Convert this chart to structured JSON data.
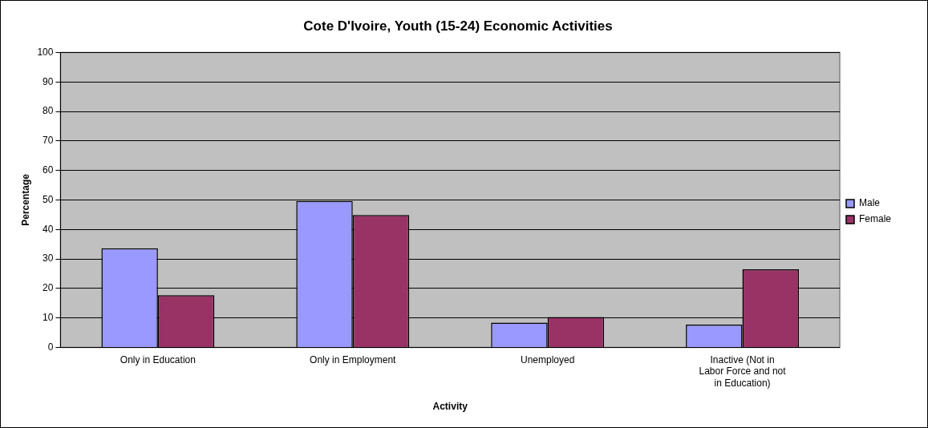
{
  "chart_data": {
    "type": "bar",
    "title": "Cote D'Ivoire, Youth (15-24) Economic Activities",
    "xlabel": "Activity",
    "ylabel": "Percentage",
    "categories": [
      "Only in Education",
      "Only in Employment",
      "Unemployed",
      "Inactive (Not in Labor Force and not in Education)"
    ],
    "series": [
      {
        "name": "Male",
        "color": "#9999ff",
        "values": [
          33.6,
          49.6,
          8.4,
          7.7
        ]
      },
      {
        "name": "Female",
        "color": "#993366",
        "values": [
          17.7,
          44.9,
          10.3,
          26.5
        ]
      }
    ],
    "ylim": [
      0,
      100
    ],
    "yticks": [
      0,
      10,
      20,
      30,
      40,
      50,
      60,
      70,
      80,
      90,
      100
    ],
    "grid": "y",
    "legend": "right"
  }
}
